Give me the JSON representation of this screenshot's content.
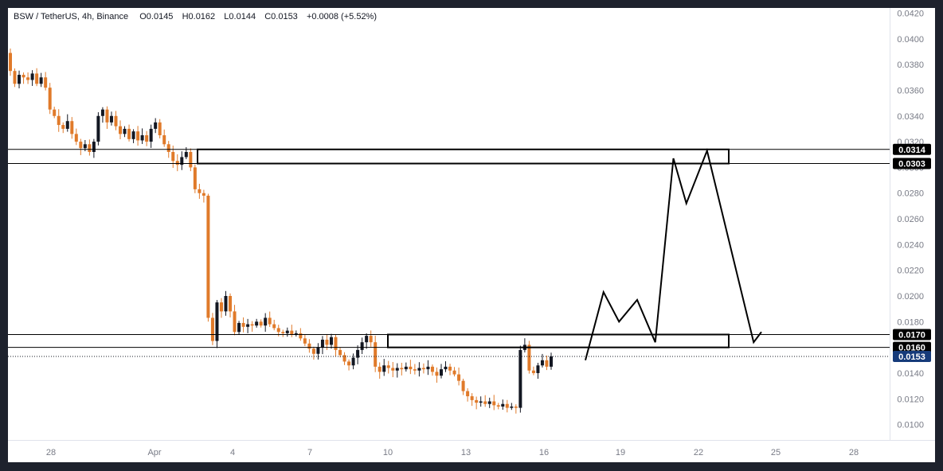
{
  "header": {
    "symbol": "BSW / TetherUS, 4h, Binance",
    "o_label": "O",
    "o_value": "0.0145",
    "h_label": "H",
    "h_value": "0.0162",
    "l_label": "L",
    "l_value": "0.0144",
    "c_label": "C",
    "c_value": "0.0153",
    "change": "+0.0008 (+5.52%)"
  },
  "colors": {
    "frame": "#1e222d",
    "background": "#ffffff",
    "up": "#131722",
    "down": "#e07a2a",
    "axis_text": "#787b86",
    "line": "#000000",
    "last_price_bg": "#163b7a"
  },
  "chart_data": {
    "type": "candlestick",
    "title": "BSW / TetherUS, 4h, Binance",
    "ylim": [
      0.0088,
      0.0424
    ],
    "y_ticks": [
      "0.0100",
      "0.0120",
      "0.0140",
      "0.0160",
      "0.0180",
      "0.0200",
      "0.0220",
      "0.0240",
      "0.0260",
      "0.0280",
      "0.0300",
      "0.0320",
      "0.0340",
      "0.0360",
      "0.0380",
      "0.0400",
      "0.0420"
    ],
    "x_ticks": [
      "28",
      "Apr",
      "4",
      "7",
      "10",
      "13",
      "16",
      "19",
      "22",
      "25",
      "28"
    ],
    "grid": false,
    "price_path": [
      [
        0.0389,
        0.0375
      ],
      [
        0.0375,
        0.0365
      ],
      [
        0.0365,
        0.0372
      ],
      [
        0.0372,
        0.037
      ],
      [
        0.037,
        0.0368
      ],
      [
        0.0368,
        0.0373
      ],
      [
        0.0373,
        0.0365
      ],
      [
        0.0365,
        0.037
      ],
      [
        0.037,
        0.0362
      ],
      [
        0.0362,
        0.0345
      ],
      [
        0.0345,
        0.034
      ],
      [
        0.034,
        0.0333
      ],
      [
        0.0333,
        0.033
      ],
      [
        0.033,
        0.0336
      ],
      [
        0.0336,
        0.0326
      ],
      [
        0.0326,
        0.032
      ],
      [
        0.032,
        0.0315
      ],
      [
        0.0315,
        0.0318
      ],
      [
        0.0318,
        0.0312
      ],
      [
        0.0312,
        0.032
      ],
      [
        0.032,
        0.034
      ],
      [
        0.034,
        0.0345
      ],
      [
        0.0345,
        0.0335
      ],
      [
        0.0335,
        0.034
      ],
      [
        0.034,
        0.0332
      ],
      [
        0.0332,
        0.0326
      ],
      [
        0.0326,
        0.033
      ],
      [
        0.033,
        0.0322
      ],
      [
        0.0322,
        0.0328
      ],
      [
        0.0328,
        0.0321
      ],
      [
        0.0321,
        0.0325
      ],
      [
        0.0325,
        0.032
      ],
      [
        0.032,
        0.033
      ],
      [
        0.033,
        0.0335
      ],
      [
        0.0335,
        0.0325
      ],
      [
        0.0325,
        0.0318
      ],
      [
        0.0318,
        0.0312
      ],
      [
        0.0312,
        0.0305
      ],
      [
        0.0305,
        0.0302
      ],
      [
        0.0302,
        0.0308
      ],
      [
        0.0308,
        0.0312
      ],
      [
        0.0312,
        0.03
      ],
      [
        0.03,
        0.0283
      ],
      [
        0.0283,
        0.028
      ],
      [
        0.028,
        0.0278
      ],
      [
        0.0278,
        0.0183
      ],
      [
        0.0183,
        0.0165
      ],
      [
        0.0165,
        0.0195
      ],
      [
        0.0195,
        0.0188
      ],
      [
        0.0188,
        0.02
      ],
      [
        0.02,
        0.0188
      ],
      [
        0.0188,
        0.0172
      ],
      [
        0.0172,
        0.0179
      ],
      [
        0.0179,
        0.0176
      ],
      [
        0.0176,
        0.0178
      ],
      [
        0.0178,
        0.0177
      ],
      [
        0.0177,
        0.018
      ],
      [
        0.018,
        0.0177
      ],
      [
        0.0177,
        0.0183
      ],
      [
        0.0183,
        0.0178
      ],
      [
        0.0178,
        0.0175
      ],
      [
        0.0175,
        0.0172
      ],
      [
        0.0172,
        0.0171
      ],
      [
        0.0171,
        0.0173
      ],
      [
        0.0173,
        0.017
      ],
      [
        0.017,
        0.0171
      ],
      [
        0.0171,
        0.0167
      ],
      [
        0.0167,
        0.0163
      ],
      [
        0.0163,
        0.0159
      ],
      [
        0.0159,
        0.0155
      ],
      [
        0.0155,
        0.016
      ],
      [
        0.016,
        0.0166
      ],
      [
        0.0166,
        0.0162
      ],
      [
        0.0162,
        0.0168
      ],
      [
        0.0168,
        0.0158
      ],
      [
        0.0158,
        0.0154
      ],
      [
        0.0154,
        0.0149
      ],
      [
        0.0149,
        0.0146
      ],
      [
        0.0146,
        0.0152
      ],
      [
        0.0152,
        0.0158
      ],
      [
        0.0158,
        0.0164
      ],
      [
        0.0164,
        0.0169
      ],
      [
        0.0169,
        0.0164
      ],
      [
        0.0164,
        0.0145
      ],
      [
        0.0145,
        0.0141
      ],
      [
        0.0141,
        0.0146
      ],
      [
        0.0146,
        0.0144
      ],
      [
        0.0144,
        0.0142
      ],
      [
        0.0142,
        0.0144
      ],
      [
        0.0144,
        0.0143
      ],
      [
        0.0143,
        0.0145
      ],
      [
        0.0145,
        0.0143
      ],
      [
        0.0143,
        0.0142
      ],
      [
        0.0142,
        0.0144
      ],
      [
        0.0144,
        0.0143
      ],
      [
        0.0143,
        0.0145
      ],
      [
        0.0145,
        0.0141
      ],
      [
        0.0141,
        0.0138
      ],
      [
        0.0138,
        0.0143
      ],
      [
        0.0143,
        0.0145
      ],
      [
        0.0145,
        0.0142
      ],
      [
        0.0142,
        0.0139
      ],
      [
        0.0139,
        0.0134
      ],
      [
        0.0134,
        0.0126
      ],
      [
        0.0126,
        0.0122
      ],
      [
        0.0122,
        0.0119
      ],
      [
        0.0119,
        0.0117
      ],
      [
        0.0117,
        0.0118
      ],
      [
        0.0118,
        0.0116
      ],
      [
        0.0116,
        0.0118
      ],
      [
        0.0118,
        0.0115
      ],
      [
        0.0115,
        0.0114
      ],
      [
        0.0114,
        0.0116
      ],
      [
        0.0116,
        0.0113
      ],
      [
        0.0113,
        0.0114
      ],
      [
        0.0114,
        0.0113
      ],
      [
        0.0113,
        0.0158
      ],
      [
        0.0158,
        0.0162
      ],
      [
        0.0162,
        0.0142
      ],
      [
        0.0142,
        0.014
      ],
      [
        0.014,
        0.0146
      ],
      [
        0.0146,
        0.015
      ],
      [
        0.015,
        0.0145
      ],
      [
        0.0145,
        0.0153
      ]
    ],
    "zones": [
      {
        "top": 0.0314,
        "bottom": 0.0303
      },
      {
        "top": 0.017,
        "bottom": 0.016
      }
    ],
    "price_labels": [
      "0.0314",
      "0.0303",
      "0.0170",
      "0.0160"
    ],
    "last_price": "0.0153",
    "projection": [
      {
        "date": "17.6",
        "price": 0.015
      },
      {
        "date": "18.3",
        "price": 0.0203
      },
      {
        "date": "18.9",
        "price": 0.018
      },
      {
        "date": "19.6",
        "price": 0.0197
      },
      {
        "date": "20.3",
        "price": 0.0164
      },
      {
        "date": "21.0",
        "price": 0.0307
      },
      {
        "date": "21.5",
        "price": 0.0272
      },
      {
        "date": "22.3",
        "price": 0.0313
      },
      {
        "date": "24.1",
        "price": 0.0164
      },
      {
        "date": "24.4",
        "price": 0.0172
      }
    ]
  }
}
